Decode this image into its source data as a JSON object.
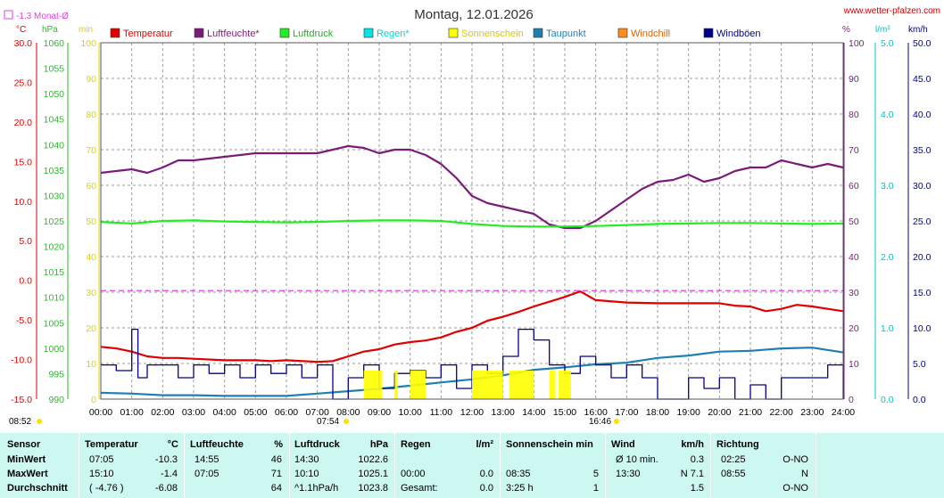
{
  "header": {
    "title": "Montag, 12.01.2026",
    "site": "www.wetter-pfalzen.com",
    "monat_note": "-1.3 Monat-Ø",
    "sunrise": "07:54",
    "sunset": "16:46",
    "time_left": "08:52"
  },
  "colors": {
    "temperature": "#e00000",
    "humidity": "#7b1c7b",
    "pressure": "#22ee22",
    "rain": "#00e5e5",
    "sunshine": "#ffff00",
    "dewpoint": "#1f7fb0",
    "windchill": "#ff8c1a",
    "gusts": "#00008b",
    "monthline": "#e040e0"
  },
  "units": {
    "temp": "°C",
    "pressure": "hPa",
    "sun": "min",
    "humidity": "%",
    "rain": "l/m²",
    "wind": "km/h"
  },
  "chart_data": {
    "type": "line",
    "legend": [
      "Temperatur",
      "Luftfeuchte*",
      "Luftdruck",
      "Regen*",
      "Sonnenschein",
      "Taupunkt",
      "Windchill",
      "Windböen"
    ],
    "x_ticks": [
      "00:00",
      "01:00",
      "02:00",
      "03:00",
      "04:00",
      "05:00",
      "06:00",
      "07:00",
      "08:00",
      "09:00",
      "10:00",
      "11:00",
      "12:00",
      "13:00",
      "14:00",
      "15:00",
      "16:00",
      "17:00",
      "18:00",
      "19:00",
      "20:00",
      "21:00",
      "22:00",
      "23:00",
      "24:00"
    ],
    "axes": {
      "temp_ticks": [
        "30.0",
        "25.0",
        "20.0",
        "15.0",
        "10.0",
        "5.0",
        "0.0",
        "-5.0",
        "-10.0",
        "-15.0"
      ],
      "pressure_ticks": [
        "1060",
        "1055",
        "1050",
        "1045",
        "1040",
        "1035",
        "1030",
        "1025",
        "1020",
        "1015",
        "1010",
        "1005",
        "1000",
        "995",
        "990"
      ],
      "sun_ticks": [
        "100",
        "90",
        "80",
        "70",
        "60",
        "50",
        "40",
        "30",
        "20",
        "10",
        "0"
      ],
      "humidity_ticks": [
        "100",
        "90",
        "80",
        "70",
        "60",
        "50",
        "40",
        "30",
        "20",
        "10",
        "0"
      ],
      "rain_ticks": [
        "5.0",
        "4.0",
        "3.0",
        "2.0",
        "1.0",
        "0.0"
      ],
      "wind_ticks": [
        "50.0",
        "45.0",
        "40.0",
        "35.0",
        "30.0",
        "25.0",
        "20.0",
        "15.0",
        "10.0",
        "5.0",
        "0.0"
      ],
      "temp_range": [
        -15,
        30
      ],
      "pressure_range": [
        990,
        1060
      ],
      "percent_range": [
        0,
        100
      ],
      "rain_range": [
        0,
        5
      ],
      "wind_range": [
        0,
        50
      ],
      "x_range_hours": [
        0,
        24
      ],
      "grid": true
    },
    "monthly_avg_temp": -1.3,
    "series": [
      {
        "name": "Temperatur",
        "axis": "temp",
        "x": [
          0,
          0.5,
          1,
          1.5,
          2,
          2.5,
          3,
          4,
          5,
          5.5,
          6,
          7,
          7.5,
          8,
          8.5,
          9,
          9.5,
          10,
          10.5,
          11,
          11.5,
          12,
          12.5,
          13,
          13.5,
          14,
          14.5,
          15,
          15.5,
          16,
          17,
          18,
          19,
          20,
          20.5,
          21,
          21.5,
          22,
          22.5,
          23,
          23.5,
          24
        ],
        "y": [
          -8.4,
          -8.6,
          -9.0,
          -9.6,
          -9.8,
          -9.8,
          -9.9,
          -10.1,
          -10.1,
          -10.2,
          -10.1,
          -10.3,
          -10.2,
          -9.6,
          -9.0,
          -8.7,
          -8.1,
          -7.8,
          -7.6,
          -7.2,
          -6.5,
          -6.0,
          -5.1,
          -4.6,
          -4.0,
          -3.3,
          -2.7,
          -2.1,
          -1.4,
          -2.5,
          -2.8,
          -2.9,
          -2.9,
          -2.9,
          -3.2,
          -3.3,
          -3.9,
          -3.6,
          -3.1,
          -3.3,
          -3.6,
          -3.9
        ]
      },
      {
        "name": "Luftfeuchte*",
        "axis": "percent",
        "x": [
          0,
          0.5,
          1,
          1.5,
          2,
          2.5,
          3,
          4,
          5,
          5.5,
          6,
          7,
          7.5,
          8,
          8.5,
          9,
          9.5,
          10,
          10.5,
          11,
          11.5,
          12,
          12.5,
          13,
          13.5,
          14,
          14.5,
          15,
          15.5,
          16,
          16.5,
          17,
          17.5,
          18,
          18.5,
          19,
          19.5,
          20,
          20.5,
          21,
          21.5,
          22,
          22.5,
          23,
          23.5,
          24
        ],
        "y": [
          63.5,
          64,
          64.5,
          63.5,
          65,
          67,
          67,
          68,
          69,
          69,
          69,
          69,
          70,
          71,
          70.5,
          69,
          70,
          70,
          68.5,
          66,
          62,
          57,
          55,
          54,
          53,
          52,
          49,
          48,
          48,
          50,
          53,
          56,
          59,
          61,
          61.5,
          63,
          61,
          62,
          64,
          65,
          65,
          67,
          66,
          65,
          66,
          65
        ]
      },
      {
        "name": "Luftdruck",
        "axis": "pressure",
        "x": [
          0,
          1,
          2,
          3,
          4,
          5,
          6,
          7,
          8,
          9,
          10,
          11,
          12,
          13,
          14,
          15,
          16,
          17,
          18,
          19,
          20,
          21,
          22,
          23,
          24
        ],
        "y": [
          1024.8,
          1024.5,
          1025.0,
          1025.1,
          1024.9,
          1024.8,
          1024.7,
          1024.8,
          1025.0,
          1025.1,
          1025.1,
          1025.0,
          1024.4,
          1024.0,
          1023.9,
          1023.9,
          1024.0,
          1024.2,
          1024.4,
          1024.5,
          1024.6,
          1024.6,
          1024.5,
          1024.4,
          1024.5
        ]
      },
      {
        "name": "Taupunkt",
        "axis": "temp",
        "x": [
          0,
          1,
          2,
          3,
          4,
          5,
          6,
          7,
          8,
          9,
          10,
          11,
          12,
          13,
          14,
          15,
          16,
          17,
          18,
          19,
          20,
          21,
          22,
          23,
          24
        ],
        "y": [
          -14.2,
          -14.3,
          -14.5,
          -14.5,
          -14.6,
          -14.6,
          -14.6,
          -14.3,
          -14.0,
          -13.7,
          -13.3,
          -12.9,
          -12.5,
          -12.0,
          -11.3,
          -11.0,
          -10.6,
          -10.4,
          -9.8,
          -9.5,
          -9.0,
          -8.9,
          -8.6,
          -8.5,
          -9.1
        ]
      },
      {
        "name": "Windböen",
        "axis": "wind",
        "x": [
          0,
          0.5,
          1,
          1.2,
          1.5,
          2,
          2.5,
          3,
          3.5,
          4,
          4.5,
          5,
          5.5,
          6,
          6.5,
          7,
          7.5,
          8,
          8.5,
          9,
          9.5,
          10,
          10.5,
          11,
          11.5,
          12,
          12.5,
          13,
          13.5,
          14,
          14.5,
          15,
          15.5,
          16,
          16.5,
          17,
          17.5,
          18,
          18.5,
          19,
          19.5,
          20,
          20.5,
          21,
          21.5,
          22,
          22.5,
          23,
          23.5,
          24
        ],
        "y": [
          4.8,
          4.0,
          9.8,
          3.0,
          4.8,
          4.8,
          3.0,
          4.8,
          3.6,
          4.8,
          3.0,
          4.8,
          3.6,
          4.8,
          3.0,
          4.8,
          0,
          3.0,
          4.8,
          1.5,
          3.6,
          4.0,
          3.0,
          4.8,
          1.5,
          4.8,
          3.6,
          6.0,
          9.8,
          8.3,
          4.8,
          3.6,
          6.0,
          4.8,
          3.0,
          4.8,
          3.0,
          0,
          0,
          3.0,
          1.5,
          3.0,
          0,
          2.0,
          0,
          3.0,
          3.0,
          3.0,
          4.8,
          0
        ]
      },
      {
        "name": "Sonnenschein",
        "axis": "percent",
        "segments_hours": [
          [
            8.5,
            9.1
          ],
          [
            9.5,
            9.6
          ],
          [
            10.0,
            10.5
          ],
          [
            12.0,
            13.0
          ],
          [
            13.2,
            14.0
          ],
          [
            14.5,
            14.7
          ],
          [
            14.8,
            15.2
          ]
        ],
        "value": 5
      }
    ]
  },
  "stats": {
    "headers": {
      "sensor": "Sensor",
      "temperatur": "Temperatur",
      "temp_unit": "°C",
      "luftfeuchte": "Luftfeuchte",
      "hum_unit": "%",
      "luftdruck": "Luftdruck",
      "press_unit": "hPa",
      "regen": "Regen",
      "rain_unit": "l/m²",
      "sonne": "Sonnenschein min",
      "wind": "Wind",
      "wind_unit": "km/h",
      "richtung": "Richtung"
    },
    "rows": [
      {
        "label": "MinWert",
        "temp_time": "07:05",
        "temp_val": "-10.3",
        "hum_time": "14:55",
        "hum_val": "46",
        "press_time": "14:30",
        "press_val": "1022.6",
        "rain_time": "",
        "rain_val": "",
        "sun_time": "",
        "sun_val": "",
        "wind_label": "Ø 10 min.",
        "wind_val": "0.3",
        "dir_time": "02:25",
        "dir_val": "O-NO"
      },
      {
        "label": "MaxWert",
        "temp_time": "15:10",
        "temp_val": "-1.4",
        "hum_time": "07:05",
        "hum_val": "71",
        "press_time": "10:10",
        "press_val": "1025.1",
        "rain_time": "00:00",
        "rain_val": "0.0",
        "sun_time": "08:35",
        "sun_val": "5",
        "wind_label": "13:30",
        "wind_val": "N 7.1",
        "dir_time": "08:55",
        "dir_val": "N"
      },
      {
        "label": "Durchschnitt",
        "temp_time": "( -4.76 )",
        "temp_val": "-6.08",
        "hum_time": "",
        "hum_val": "64",
        "press_time": "^1.1hPa/h",
        "press_val": "1023.8",
        "rain_time": "Gesamt:",
        "rain_val": "0.0",
        "sun_time": "3:25 h",
        "sun_val": "1",
        "wind_label": "",
        "wind_val": "1.5",
        "dir_time": "",
        "dir_val": "O-NO"
      }
    ]
  }
}
